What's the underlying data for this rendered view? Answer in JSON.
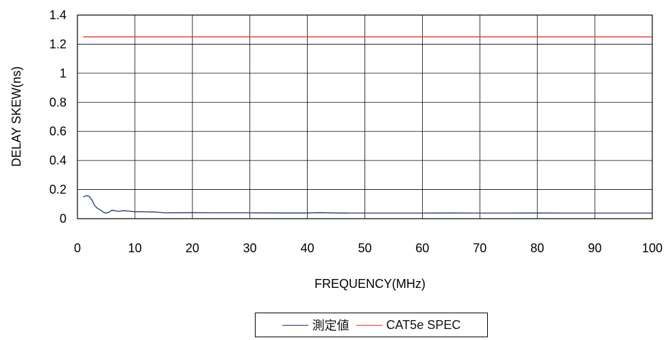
{
  "chart_data": {
    "type": "line",
    "title": "",
    "xlabel": "FREQUENCY(MHz)",
    "ylabel": "DELAY SKEW(ns)",
    "xlim": [
      0,
      100
    ],
    "ylim": [
      0,
      1.4
    ],
    "x_ticks": [
      0,
      10,
      20,
      30,
      40,
      50,
      60,
      70,
      80,
      90,
      100
    ],
    "y_ticks": [
      0,
      0.2,
      0.4,
      0.6,
      0.8,
      1,
      1.2,
      1.4
    ],
    "grid": true,
    "legend_position": "bottom-center",
    "series": [
      {
        "name": "測定値",
        "color": "#1f2f7a",
        "x": [
          1,
          1.5,
          2,
          2.5,
          3,
          3.5,
          4,
          4.5,
          5,
          5.5,
          6,
          6.5,
          7,
          7.5,
          8,
          9,
          10,
          11,
          12,
          13,
          14,
          15,
          20,
          25,
          30,
          35,
          40,
          42,
          45,
          50,
          55,
          60,
          65,
          70,
          75,
          80,
          85,
          90,
          95,
          100
        ],
        "y": [
          0.15,
          0.158,
          0.155,
          0.13,
          0.09,
          0.07,
          0.06,
          0.045,
          0.038,
          0.045,
          0.058,
          0.055,
          0.05,
          0.052,
          0.055,
          0.052,
          0.048,
          0.048,
          0.047,
          0.046,
          0.045,
          0.04,
          0.041,
          0.04,
          0.04,
          0.039,
          0.039,
          0.041,
          0.039,
          0.038,
          0.038,
          0.038,
          0.039,
          0.038,
          0.038,
          0.039,
          0.038,
          0.038,
          0.038,
          0.038
        ]
      },
      {
        "name": "CAT5e SPEC",
        "color": "#e8322a",
        "x": [
          1,
          100
        ],
        "y": [
          1.25,
          1.25
        ]
      }
    ]
  }
}
